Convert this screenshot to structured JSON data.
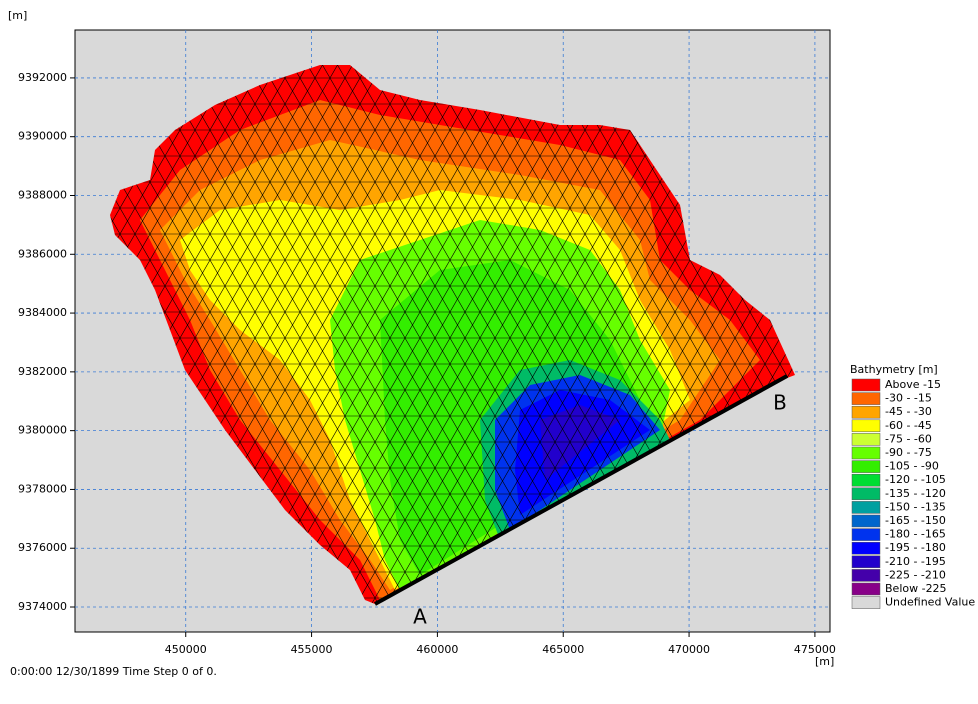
{
  "chart_data": {
    "type": "map",
    "y_label": "[m]",
    "x_label": "[m]",
    "xlim": [
      445600,
      475600
    ],
    "ylim": [
      9373150,
      9393630
    ],
    "xticks": [
      450000,
      455000,
      460000,
      465000,
      470000,
      475000
    ],
    "yticks": [
      9374000,
      9376000,
      9378000,
      9380000,
      9382000,
      9384000,
      9386000,
      9388000,
      9390000,
      9392000
    ],
    "grid": true,
    "annotations": [
      "A",
      "B"
    ],
    "legend": {
      "title": "Bathymetry [m]",
      "position": "right",
      "items": [
        {
          "label": "Above -15",
          "color": "#ff0000"
        },
        {
          "label": "-30 - -15",
          "color": "#ff6600"
        },
        {
          "label": "-45 - -30",
          "color": "#ffa500"
        },
        {
          "label": "-60 - -45",
          "color": "#ffff00"
        },
        {
          "label": "-75 - -60",
          "color": "#ccff33"
        },
        {
          "label": "-90 - -75",
          "color": "#66ff00"
        },
        {
          "label": "-105 - -90",
          "color": "#33ee00"
        },
        {
          "label": "-120 - -105",
          "color": "#00dd33"
        },
        {
          "label": "-135 - -120",
          "color": "#00bb66"
        },
        {
          "label": "-150 - -135",
          "color": "#00a0a0"
        },
        {
          "label": "-165 - -150",
          "color": "#0066cc"
        },
        {
          "label": "-180 - -165",
          "color": "#0033ee"
        },
        {
          "label": "-195 - -180",
          "color": "#0000ff"
        },
        {
          "label": "-210 - -195",
          "color": "#2200cc"
        },
        {
          "label": "-225 - -210",
          "color": "#4400aa"
        },
        {
          "label": "Below -225",
          "color": "#880088"
        },
        {
          "label": "Undefined Value",
          "color": "#d9d9d9"
        }
      ]
    }
  },
  "status_bar": {
    "text": "0:00:00 12/30/1899  Time Step 0 of 0."
  }
}
